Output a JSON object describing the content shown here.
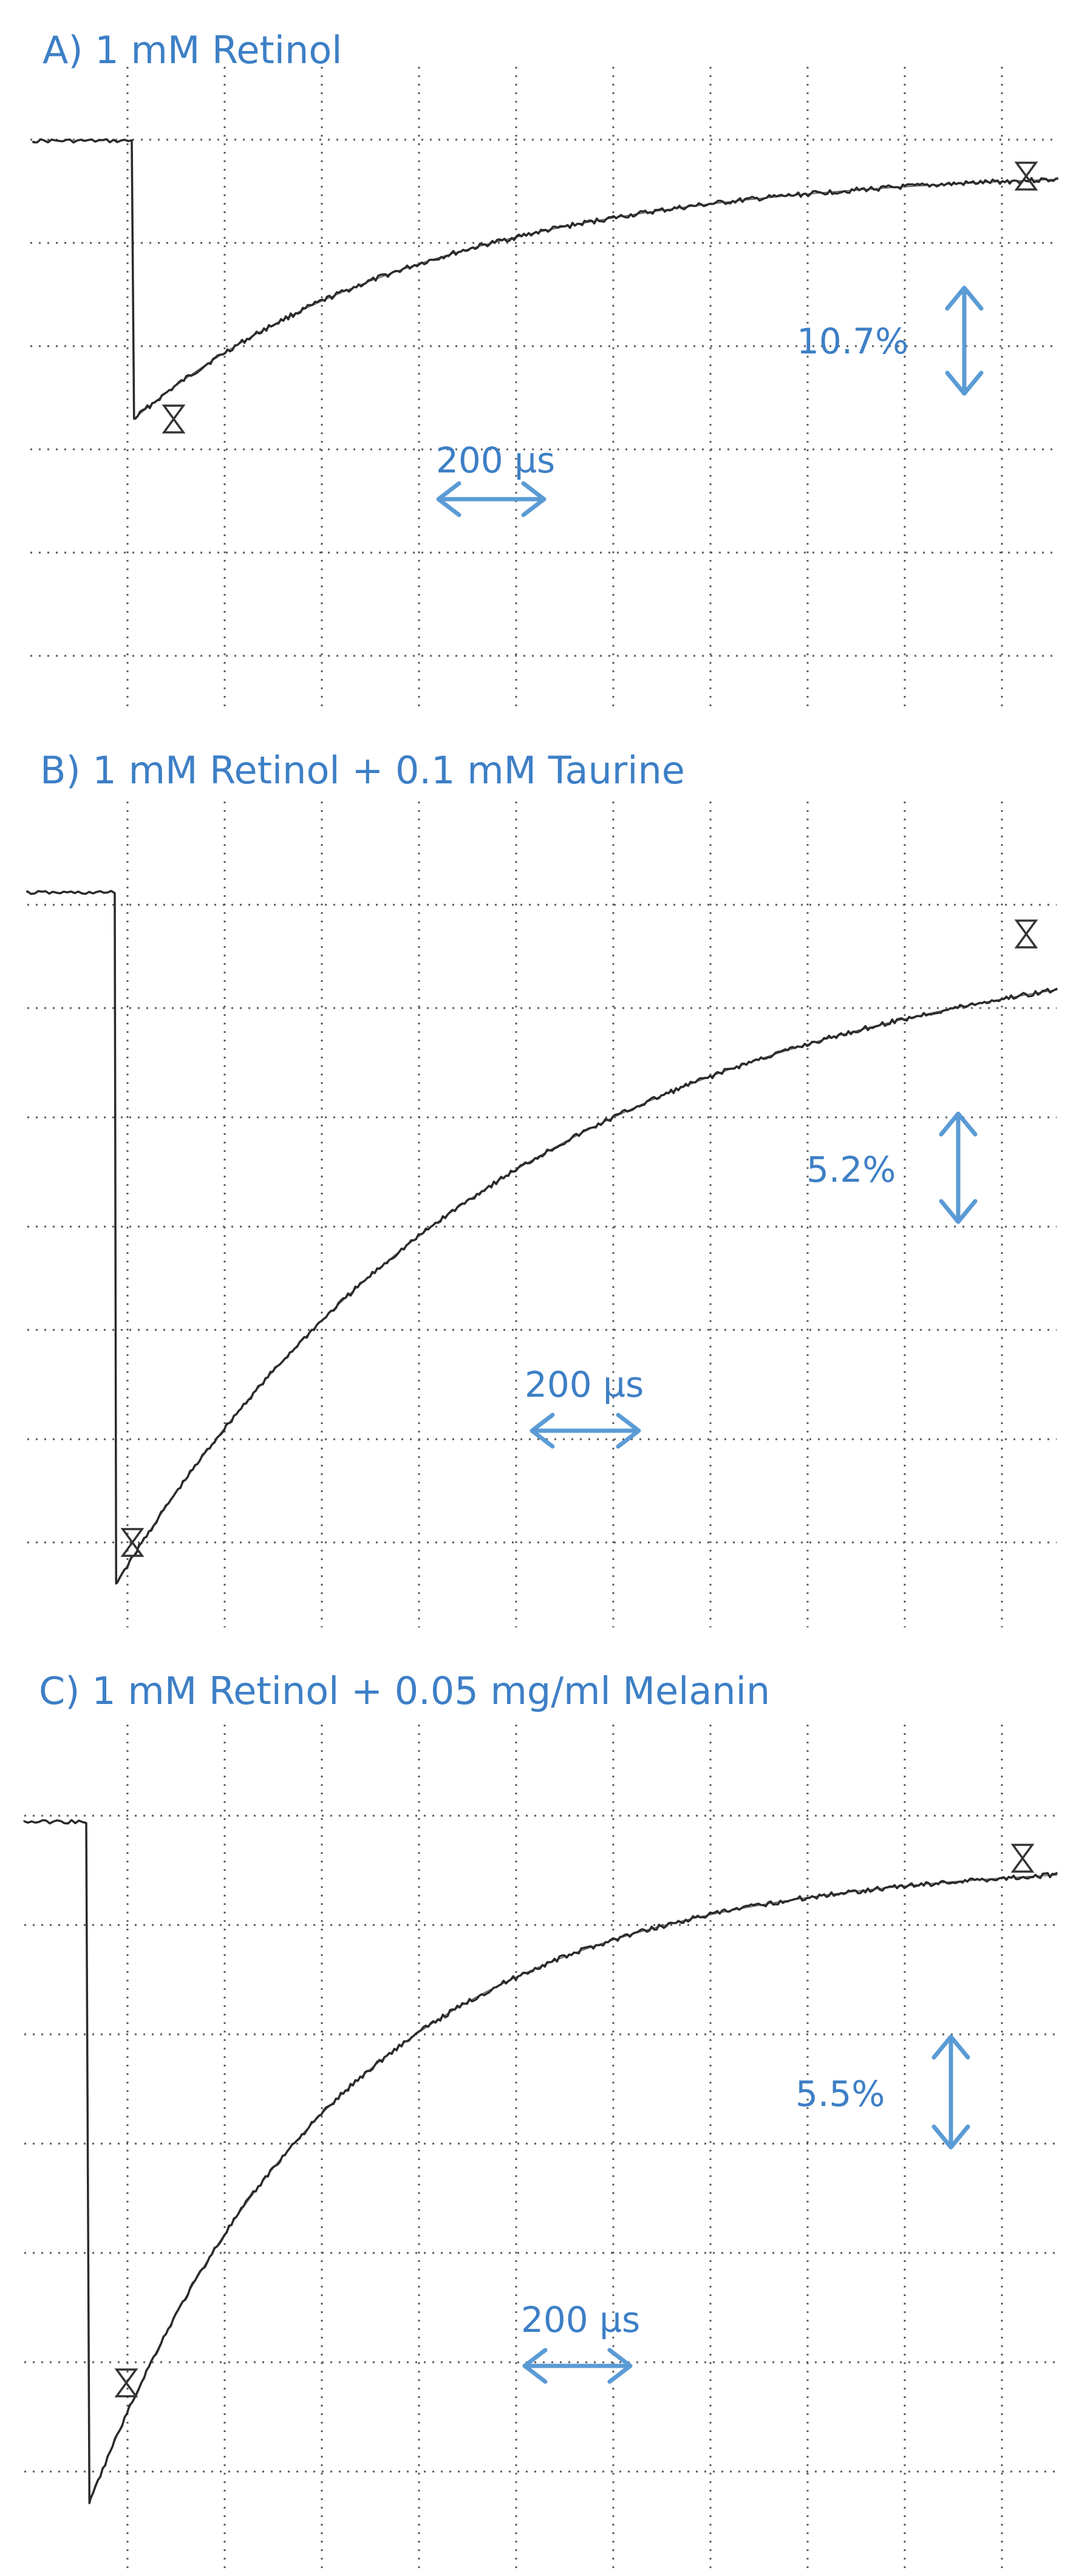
{
  "chart_data": [
    {
      "type": "line",
      "title": "A) 1 mM Retinol",
      "grid": true,
      "ylim": [
        -5,
        1
      ],
      "series": [
        {
          "pre_level": 0,
          "drop_x_us": 85,
          "min": -3.05,
          "tau_us": 250,
          "plateau": -0.3
        }
      ],
      "annotations": {
        "amplitude": "10.7%",
        "timescale": "200 µs"
      }
    },
    {
      "type": "line",
      "title": "B) 1 mM Retinol + 0.1 mM Taurine",
      "grid": true,
      "ylim": [
        -7,
        1
      ],
      "series": [
        {
          "pre_level": 0,
          "drop_x_us": 75,
          "min": -7.2,
          "tau_us": 340,
          "plateau": -0.35
        }
      ],
      "annotations": {
        "amplitude": "5.2%",
        "timescale": "200 µs"
      }
    },
    {
      "type": "line",
      "title": "C) 1 mM Retinol + 0.05 mg/ml Melanin",
      "grid": true,
      "ylim": [
        -7,
        1
      ],
      "series": [
        {
          "pre_level": 0,
          "drop_x_us": 55,
          "min": -6.8,
          "tau_us": 210,
          "plateau": -0.4
        }
      ],
      "annotations": {
        "amplitude": "5.5%",
        "timescale": "200 µs"
      }
    }
  ]
}
